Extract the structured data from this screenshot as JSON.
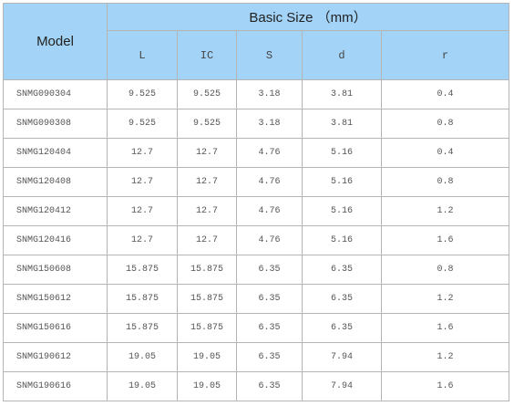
{
  "header": {
    "model": "Model",
    "basic_size": "Basic Size （mm）",
    "columns": [
      "L",
      "IC",
      "S",
      "d",
      "r"
    ]
  },
  "table": {
    "rows": [
      [
        "SNMG090304",
        "9.525",
        "9.525",
        "3.18",
        "3.81",
        "0.4"
      ],
      [
        "SNMG090308",
        "9.525",
        "9.525",
        "3.18",
        "3.81",
        "0.8"
      ],
      [
        "SNMG120404",
        "12.7",
        "12.7",
        "4.76",
        "5.16",
        "0.4"
      ],
      [
        "SNMG120408",
        "12.7",
        "12.7",
        "4.76",
        "5.16",
        "0.8"
      ],
      [
        "SNMG120412",
        "12.7",
        "12.7",
        "4.76",
        "5.16",
        "1.2"
      ],
      [
        "SNMG120416",
        "12.7",
        "12.7",
        "4.76",
        "5.16",
        "1.6"
      ],
      [
        "SNMG150608",
        "15.875",
        "15.875",
        "6.35",
        "6.35",
        "0.8"
      ],
      [
        "SNMG150612",
        "15.875",
        "15.875",
        "6.35",
        "6.35",
        "1.2"
      ],
      [
        "SNMG150616",
        "15.875",
        "15.875",
        "6.35",
        "6.35",
        "1.6"
      ],
      [
        "SNMG190612",
        "19.05",
        "19.05",
        "6.35",
        "7.94",
        "1.2"
      ],
      [
        "SNMG190616",
        "19.05",
        "19.05",
        "6.35",
        "7.94",
        "1.6"
      ]
    ]
  }
}
